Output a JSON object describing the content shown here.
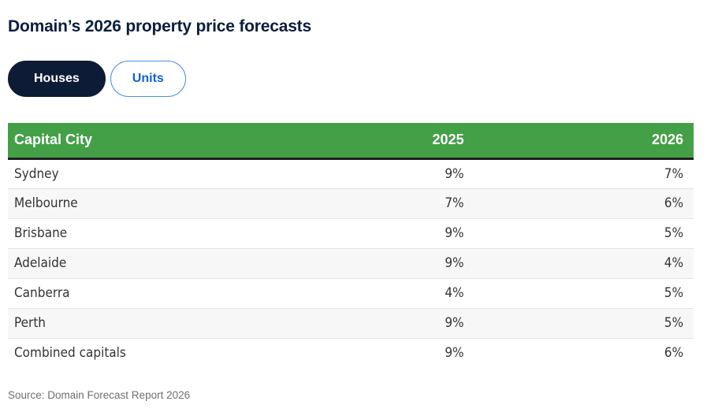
{
  "page": {
    "title": "Domain’s 2026 property price forecasts",
    "source_note": "Source: Domain Forecast Report 2026"
  },
  "toggle": {
    "houses_label": "Houses",
    "units_label": "Units",
    "active_tab": "Houses"
  },
  "colors": {
    "header_green": "#43a047",
    "title_navy": "#0b1e3e",
    "active_pill_navy": "#0e1b36",
    "inactive_pill_blue": "#0f62d6",
    "row_alt_gray": "#f7f7f7",
    "header_underline": "#212121"
  },
  "chart_data": {
    "type": "table",
    "title": "Domain’s 2026 property price forecasts",
    "columns": [
      "Capital City",
      "2025",
      "2026"
    ],
    "rows": [
      {
        "city": "Sydney",
        "y2025": "9%",
        "y2026": "7%"
      },
      {
        "city": "Melbourne",
        "y2025": "7%",
        "y2026": "6%"
      },
      {
        "city": "Brisbane",
        "y2025": "9%",
        "y2026": "5%"
      },
      {
        "city": "Adelaide",
        "y2025": "9%",
        "y2026": "4%"
      },
      {
        "city": "Canberra",
        "y2025": "4%",
        "y2026": "5%"
      },
      {
        "city": "Perth",
        "y2025": "9%",
        "y2026": "5%"
      },
      {
        "city": "Combined capitals",
        "y2025": "9%",
        "y2026": "6%"
      }
    ]
  }
}
